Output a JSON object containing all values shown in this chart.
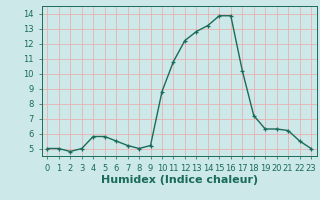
{
  "x": [
    0,
    1,
    2,
    3,
    4,
    5,
    6,
    7,
    8,
    9,
    10,
    11,
    12,
    13,
    14,
    15,
    16,
    17,
    18,
    19,
    20,
    21,
    22,
    23
  ],
  "y": [
    5.0,
    5.0,
    4.8,
    5.0,
    5.8,
    5.8,
    5.5,
    5.2,
    5.0,
    5.2,
    8.8,
    10.8,
    12.2,
    12.8,
    13.2,
    13.85,
    13.85,
    10.2,
    7.2,
    6.3,
    6.3,
    6.2,
    5.5,
    5.0
  ],
  "line_color": "#1a6b5a",
  "marker": "+",
  "marker_size": 3,
  "xlabel": "Humidex (Indice chaleur)",
  "xlim": [
    -0.5,
    23.5
  ],
  "ylim": [
    4.5,
    14.5
  ],
  "yticks": [
    5,
    6,
    7,
    8,
    9,
    10,
    11,
    12,
    13,
    14
  ],
  "xticks": [
    0,
    1,
    2,
    3,
    4,
    5,
    6,
    7,
    8,
    9,
    10,
    11,
    12,
    13,
    14,
    15,
    16,
    17,
    18,
    19,
    20,
    21,
    22,
    23
  ],
  "grid_color": "#e8b0b0",
  "bg_color": "#cce8e8",
  "tick_fontsize": 6,
  "xlabel_fontsize": 8,
  "line_width": 1.0
}
